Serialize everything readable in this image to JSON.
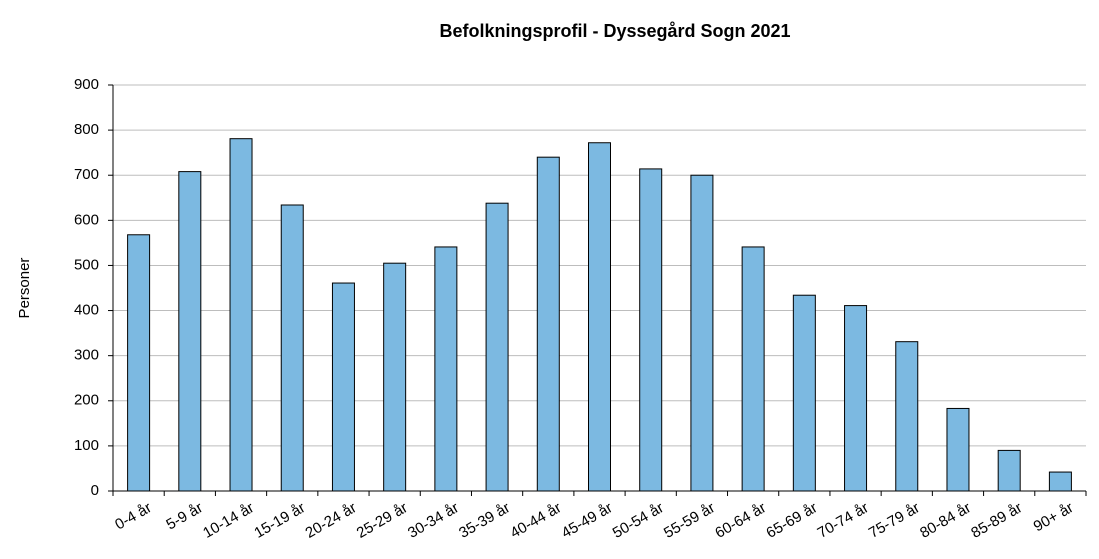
{
  "chart_data": {
    "type": "bar",
    "title": "Befolkningsprofil - Dyssegård Sogn 2021",
    "ylabel": "Personer",
    "categories": [
      "0-4 år",
      "5-9 år",
      "10-14 år",
      "15-19 år",
      "20-24 år",
      "25-29 år",
      "30-34 år",
      "35-39 år",
      "40-44 år",
      "45-49 år",
      "50-54 år",
      "55-59 år",
      "60-64 år",
      "65-69 år",
      "70-74 år",
      "75-79 år",
      "80-84 år",
      "85-89 år",
      "90+ år"
    ],
    "values": [
      568,
      708,
      781,
      634,
      461,
      505,
      541,
      638,
      740,
      772,
      714,
      700,
      541,
      434,
      411,
      331,
      183,
      90,
      42
    ],
    "color": "#7cb9e1",
    "ylim": [
      0,
      900
    ],
    "yticks": [
      0,
      100,
      200,
      300,
      400,
      500,
      600,
      700,
      800,
      900
    ],
    "grid": true
  }
}
